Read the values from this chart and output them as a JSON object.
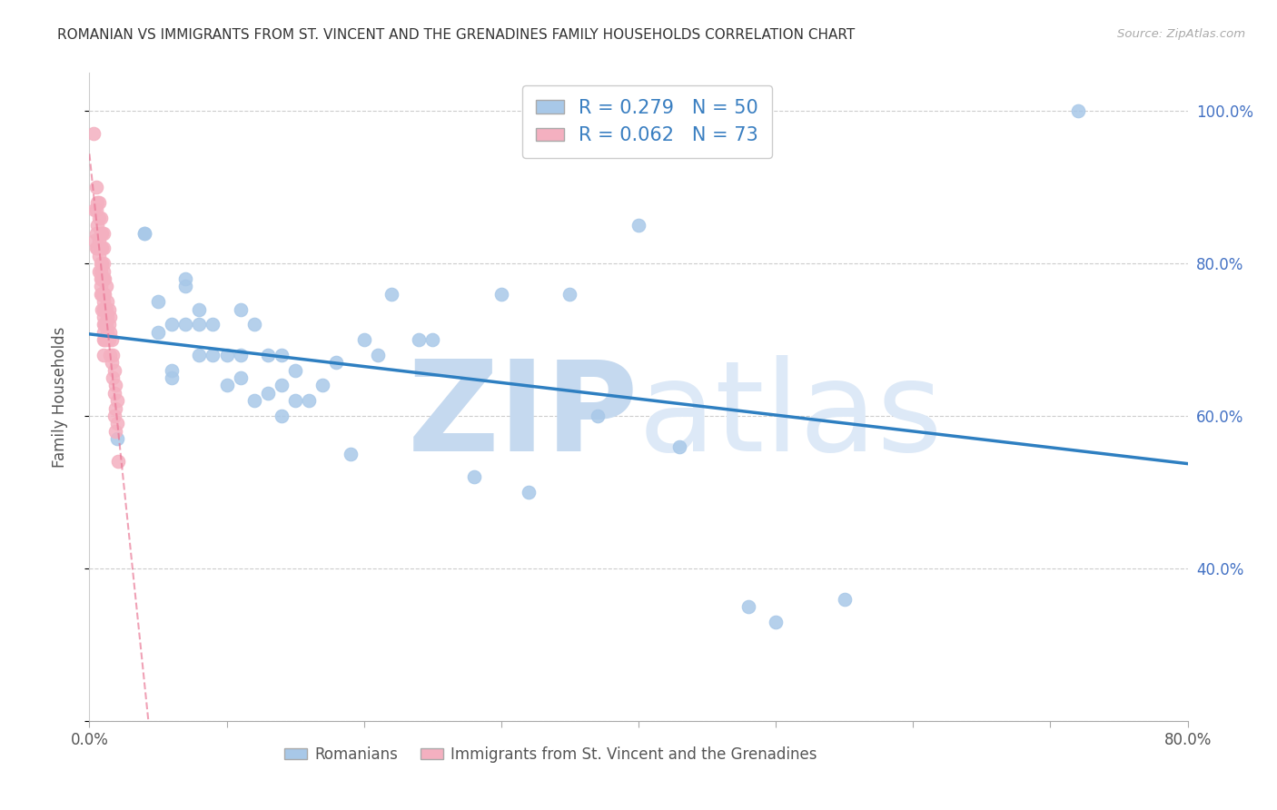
{
  "title": "ROMANIAN VS IMMIGRANTS FROM ST. VINCENT AND THE GRENADINES FAMILY HOUSEHOLDS CORRELATION CHART",
  "source": "Source: ZipAtlas.com",
  "ylabel": "Family Households",
  "legend_labels": [
    "Romanians",
    "Immigrants from St. Vincent and the Grenadines"
  ],
  "R_blue": 0.279,
  "N_blue": 50,
  "R_pink": 0.062,
  "N_pink": 73,
  "blue_color": "#a8c8e8",
  "pink_color": "#f4b0c0",
  "blue_line_color": "#2e7fc1",
  "pink_line_color": "#e87090",
  "right_axis_color": "#4472c4",
  "xlim": [
    0.0,
    0.8
  ],
  "ylim": [
    0.2,
    1.05
  ],
  "xtick_vals": [
    0.0,
    0.1,
    0.2,
    0.3,
    0.4,
    0.5,
    0.6,
    0.7,
    0.8
  ],
  "yticks_grid": [
    0.2,
    0.4,
    0.6,
    0.8,
    1.0
  ],
  "yticks_right_labels": [
    "40.0%",
    "60.0%",
    "80.0%",
    "100.0%"
  ],
  "yticks_right_vals": [
    0.4,
    0.6,
    0.8,
    1.0
  ],
  "blue_scatter_x": [
    0.02,
    0.04,
    0.04,
    0.05,
    0.05,
    0.06,
    0.06,
    0.06,
    0.07,
    0.07,
    0.07,
    0.08,
    0.08,
    0.08,
    0.09,
    0.09,
    0.1,
    0.1,
    0.11,
    0.11,
    0.11,
    0.12,
    0.12,
    0.13,
    0.13,
    0.14,
    0.14,
    0.14,
    0.15,
    0.15,
    0.16,
    0.17,
    0.18,
    0.19,
    0.2,
    0.21,
    0.22,
    0.24,
    0.25,
    0.28,
    0.3,
    0.32,
    0.35,
    0.37,
    0.4,
    0.43,
    0.48,
    0.5,
    0.55,
    0.72
  ],
  "blue_scatter_y": [
    0.57,
    0.84,
    0.84,
    0.71,
    0.75,
    0.65,
    0.66,
    0.72,
    0.72,
    0.77,
    0.78,
    0.68,
    0.72,
    0.74,
    0.68,
    0.72,
    0.64,
    0.68,
    0.65,
    0.68,
    0.74,
    0.62,
    0.72,
    0.63,
    0.68,
    0.6,
    0.64,
    0.68,
    0.62,
    0.66,
    0.62,
    0.64,
    0.67,
    0.55,
    0.7,
    0.68,
    0.76,
    0.7,
    0.7,
    0.52,
    0.76,
    0.5,
    0.76,
    0.6,
    0.85,
    0.56,
    0.35,
    0.33,
    0.36,
    1.0
  ],
  "pink_scatter_x": [
    0.003,
    0.004,
    0.004,
    0.005,
    0.005,
    0.005,
    0.005,
    0.006,
    0.006,
    0.006,
    0.007,
    0.007,
    0.007,
    0.007,
    0.007,
    0.008,
    0.008,
    0.008,
    0.008,
    0.008,
    0.008,
    0.008,
    0.008,
    0.009,
    0.009,
    0.009,
    0.009,
    0.009,
    0.009,
    0.01,
    0.01,
    0.01,
    0.01,
    0.01,
    0.01,
    0.01,
    0.01,
    0.01,
    0.01,
    0.01,
    0.01,
    0.01,
    0.011,
    0.011,
    0.011,
    0.011,
    0.011,
    0.012,
    0.012,
    0.012,
    0.012,
    0.013,
    0.013,
    0.013,
    0.014,
    0.014,
    0.014,
    0.015,
    0.015,
    0.015,
    0.016,
    0.016,
    0.017,
    0.017,
    0.018,
    0.018,
    0.018,
    0.019,
    0.019,
    0.019,
    0.02,
    0.02,
    0.021
  ],
  "pink_scatter_y": [
    0.97,
    0.87,
    0.83,
    0.9,
    0.87,
    0.84,
    0.82,
    0.88,
    0.85,
    0.82,
    0.88,
    0.86,
    0.83,
    0.81,
    0.79,
    0.86,
    0.84,
    0.82,
    0.8,
    0.79,
    0.78,
    0.77,
    0.76,
    0.84,
    0.82,
    0.8,
    0.78,
    0.76,
    0.74,
    0.84,
    0.82,
    0.8,
    0.79,
    0.78,
    0.76,
    0.75,
    0.74,
    0.73,
    0.72,
    0.71,
    0.7,
    0.68,
    0.78,
    0.76,
    0.74,
    0.72,
    0.7,
    0.77,
    0.74,
    0.72,
    0.7,
    0.75,
    0.73,
    0.71,
    0.74,
    0.72,
    0.7,
    0.73,
    0.71,
    0.68,
    0.7,
    0.67,
    0.68,
    0.65,
    0.66,
    0.63,
    0.6,
    0.64,
    0.61,
    0.58,
    0.62,
    0.59,
    0.54
  ],
  "watermark_zip": "ZIP",
  "watermark_atlas": "atlas",
  "watermark_color": "#d8e8f5",
  "background_color": "#ffffff"
}
